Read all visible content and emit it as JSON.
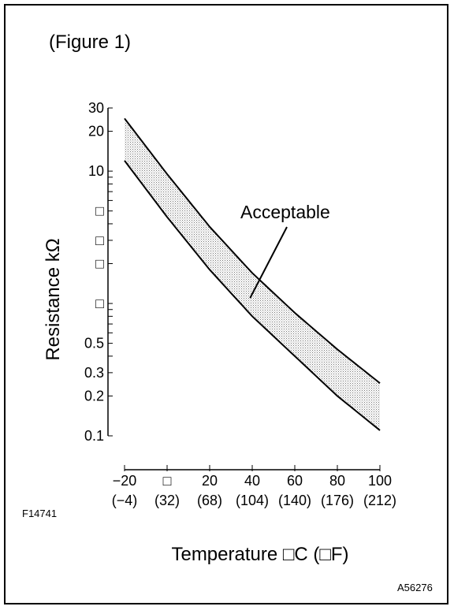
{
  "figure_label": "(Figure 1)",
  "code_left": "F14741",
  "code_right": "A56276",
  "chart_data": {
    "type": "area",
    "title": "",
    "xlabel": "Temperature □C (□F)",
    "ylabel": "Resistance kΩ",
    "y_scale": "log",
    "xlim": [
      -20,
      100
    ],
    "ylim": [
      0.1,
      30
    ],
    "y_ticks": [
      {
        "value": 30,
        "label": "30"
      },
      {
        "value": 20,
        "label": "20"
      },
      {
        "value": 10,
        "label": "10"
      },
      {
        "value": 5,
        "label": "□"
      },
      {
        "value": 3,
        "label": "□"
      },
      {
        "value": 2,
        "label": "□"
      },
      {
        "value": 1,
        "label": "□"
      },
      {
        "value": 0.5,
        "label": "0.5"
      },
      {
        "value": 0.3,
        "label": "0.3"
      },
      {
        "value": 0.2,
        "label": "0.2"
      },
      {
        "value": 0.1,
        "label": "0.1"
      }
    ],
    "x_ticks": [
      {
        "value": -20,
        "label": "−20",
        "sub": "(−4)"
      },
      {
        "value": 0,
        "label": "□",
        "sub": "(32)"
      },
      {
        "value": 20,
        "label": "20",
        "sub": "(68)"
      },
      {
        "value": 40,
        "label": "40",
        "sub": "(104)"
      },
      {
        "value": 60,
        "label": "60",
        "sub": "(140)"
      },
      {
        "value": 80,
        "label": "80",
        "sub": "(176)"
      },
      {
        "value": 100,
        "label": "100",
        "sub": "(212)"
      }
    ],
    "x": [
      -20,
      0,
      20,
      40,
      60,
      80,
      100
    ],
    "series": [
      {
        "values": [
          25,
          9.5,
          3.8,
          1.7,
          0.85,
          0.45,
          0.25
        ]
      },
      {
        "values": [
          12,
          4.5,
          1.8,
          0.8,
          0.4,
          0.2,
          0.11
        ]
      }
    ],
    "annotation": {
      "text": "Acceptable",
      "x": 39,
      "y": 1.1
    }
  }
}
